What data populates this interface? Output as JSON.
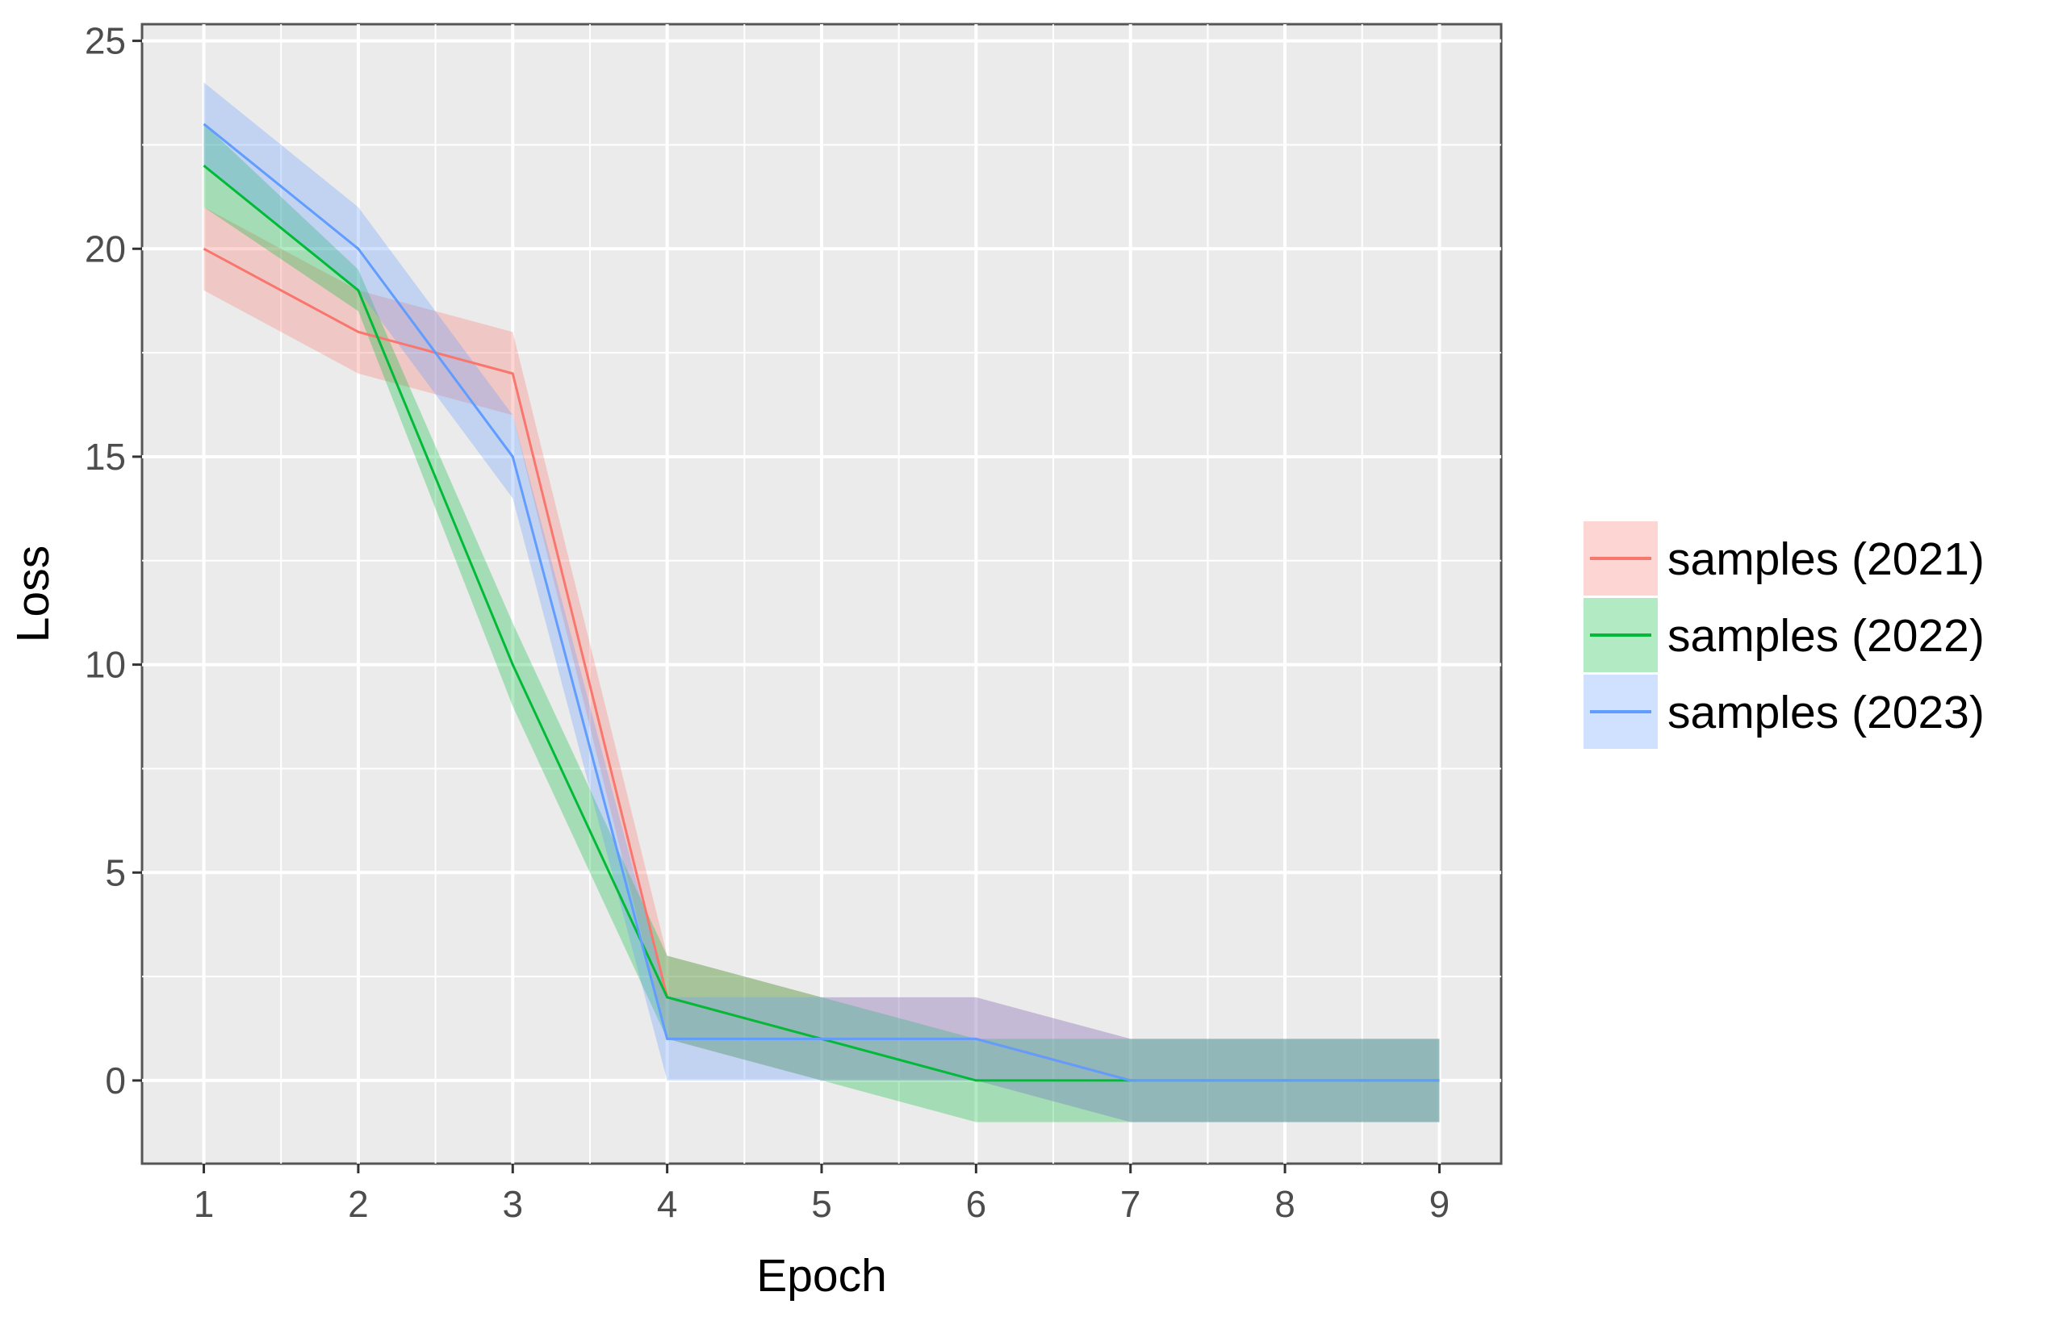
{
  "chart_data": {
    "type": "line",
    "xlabel": "Epoch",
    "ylabel": "Loss",
    "xlim": [
      0.6,
      9.4
    ],
    "ylim": [
      -2,
      25.4
    ],
    "x_ticks": [
      1,
      2,
      3,
      4,
      5,
      6,
      7,
      8,
      9
    ],
    "y_ticks": [
      0,
      5,
      10,
      15,
      20,
      25
    ],
    "grid": true,
    "legend_position": "right",
    "series": [
      {
        "name": "samples (2021)",
        "color": "#F8766D",
        "x": [
          1,
          2,
          3,
          4,
          5,
          6,
          7,
          8,
          9
        ],
        "values": [
          20,
          18,
          17,
          2,
          1,
          1,
          0,
          0,
          0
        ],
        "lower": [
          19,
          17,
          16,
          1,
          0,
          0,
          -1,
          -1,
          -1
        ],
        "upper": [
          21,
          19,
          18,
          3,
          2,
          2,
          1,
          1,
          1
        ]
      },
      {
        "name": "samples (2022)",
        "color": "#00BA38",
        "x": [
          1,
          2,
          3,
          4,
          5,
          6,
          7,
          8,
          9
        ],
        "values": [
          22,
          19,
          10,
          2,
          1,
          0,
          0,
          0,
          0
        ],
        "lower": [
          21,
          18.5,
          9,
          1,
          0,
          -1,
          -1,
          -1,
          -1
        ],
        "upper": [
          23,
          19.5,
          11,
          3,
          2,
          1,
          1,
          1,
          1
        ]
      },
      {
        "name": "samples (2023)",
        "color": "#619CFF",
        "x": [
          1,
          2,
          3,
          4,
          5,
          6,
          7,
          8,
          9
        ],
        "values": [
          23,
          20,
          15,
          1,
          1,
          1,
          0,
          0,
          0
        ],
        "lower": [
          22,
          19,
          14,
          0,
          0,
          0,
          -1,
          -1,
          -1
        ],
        "upper": [
          24,
          21,
          16,
          2,
          2,
          2,
          1,
          1,
          1
        ]
      }
    ]
  }
}
